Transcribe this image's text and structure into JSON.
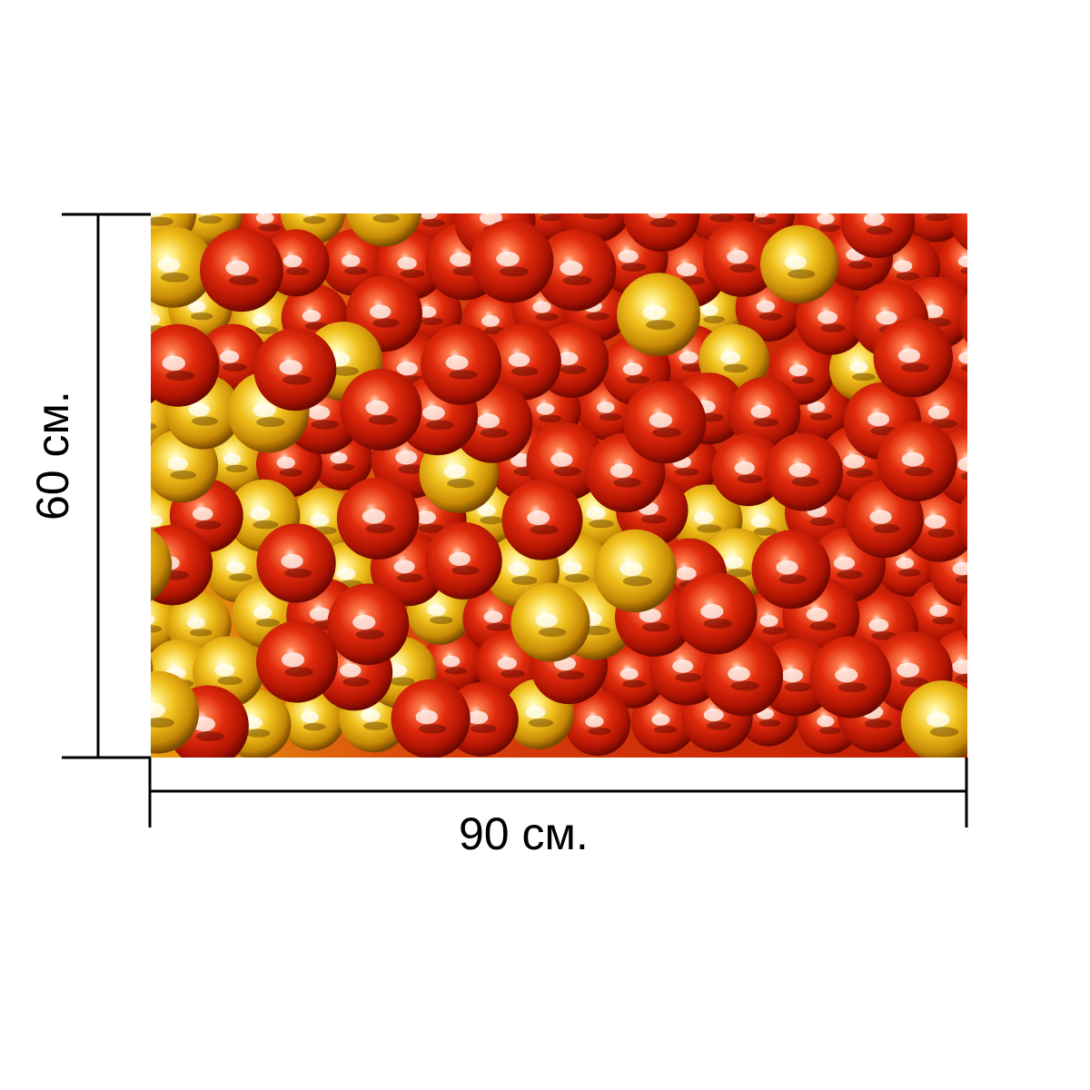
{
  "dimensions": {
    "width_label": "90 см.",
    "height_label": "60 см."
  },
  "photo": {
    "subject": "red-and-gold-bead-garland",
    "colors": {
      "red": "#d8220a",
      "red_dark": "#8f0c02",
      "red_light": "#ff6a3a",
      "gold": "#e8b514",
      "gold_dark": "#a86a05",
      "gold_light": "#fff39a",
      "highlight": "#ffffff"
    }
  },
  "colors": {
    "line": "#000000",
    "text": "#000000",
    "background": "#ffffff"
  }
}
